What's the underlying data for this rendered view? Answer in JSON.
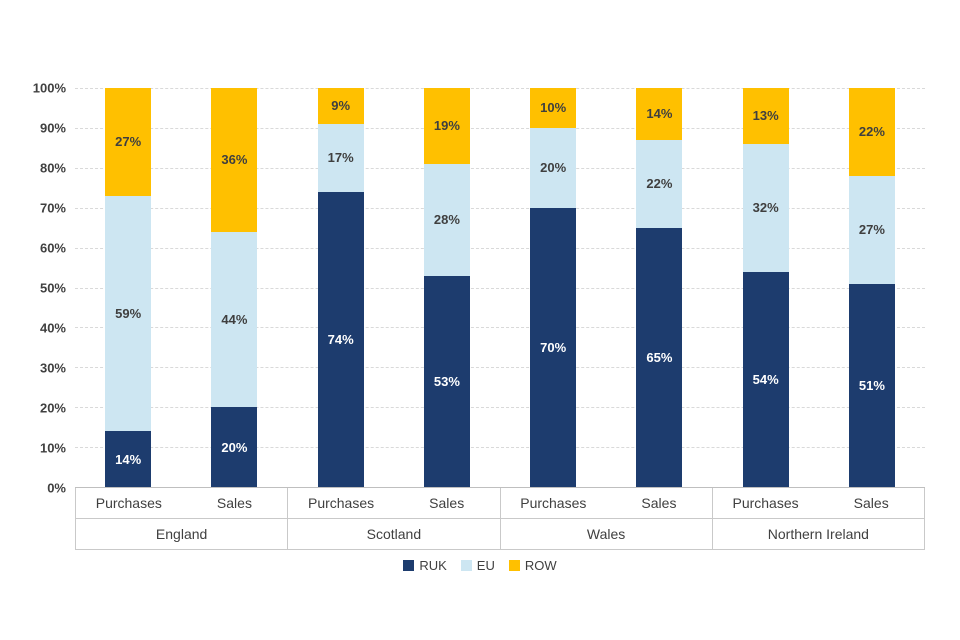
{
  "chart_data": {
    "type": "bar",
    "stacked": true,
    "unit": "%",
    "title": "",
    "xlabel": "",
    "ylabel": "",
    "ylim": [
      0,
      100
    ],
    "grid": "horizontal-dashed",
    "yticks": [
      {
        "value": 0,
        "label": "0%"
      },
      {
        "value": 10,
        "label": "10%"
      },
      {
        "value": 20,
        "label": "20%"
      },
      {
        "value": 30,
        "label": "30%"
      },
      {
        "value": 40,
        "label": "40%"
      },
      {
        "value": 50,
        "label": "50%"
      },
      {
        "value": 60,
        "label": "60%"
      },
      {
        "value": 70,
        "label": "70%"
      },
      {
        "value": 80,
        "label": "80%"
      },
      {
        "value": 90,
        "label": "90%"
      },
      {
        "value": 100,
        "label": "100%"
      }
    ],
    "series": [
      {
        "name": "RUK",
        "color": "#1d3c6e",
        "label_color": "#ffffff"
      },
      {
        "name": "EU",
        "color": "#cde6f2",
        "label_color": "#3f3f3f"
      },
      {
        "name": "ROW",
        "color": "#ffc000",
        "label_color": "#3f3f3f"
      }
    ],
    "groups": [
      {
        "label": "England",
        "bars": [
          {
            "label": "Purchases",
            "values": [
              14,
              59,
              27
            ]
          },
          {
            "label": "Sales",
            "values": [
              20,
              44,
              36
            ]
          }
        ]
      },
      {
        "label": "Scotland",
        "bars": [
          {
            "label": "Purchases",
            "values": [
              74,
              17,
              9
            ]
          },
          {
            "label": "Sales",
            "values": [
              53,
              28,
              19
            ]
          }
        ]
      },
      {
        "label": "Wales",
        "bars": [
          {
            "label": "Purchases",
            "values": [
              70,
              20,
              10
            ]
          },
          {
            "label": "Sales",
            "values": [
              65,
              22,
              14
            ]
          }
        ]
      },
      {
        "label": "Northern Ireland",
        "bars": [
          {
            "label": "Purchases",
            "values": [
              54,
              32,
              13
            ]
          },
          {
            "label": "Sales",
            "values": [
              51,
              27,
              22
            ]
          }
        ]
      }
    ],
    "legend": {
      "position": "bottom",
      "items": [
        "RUK",
        "EU",
        "ROW"
      ]
    }
  }
}
